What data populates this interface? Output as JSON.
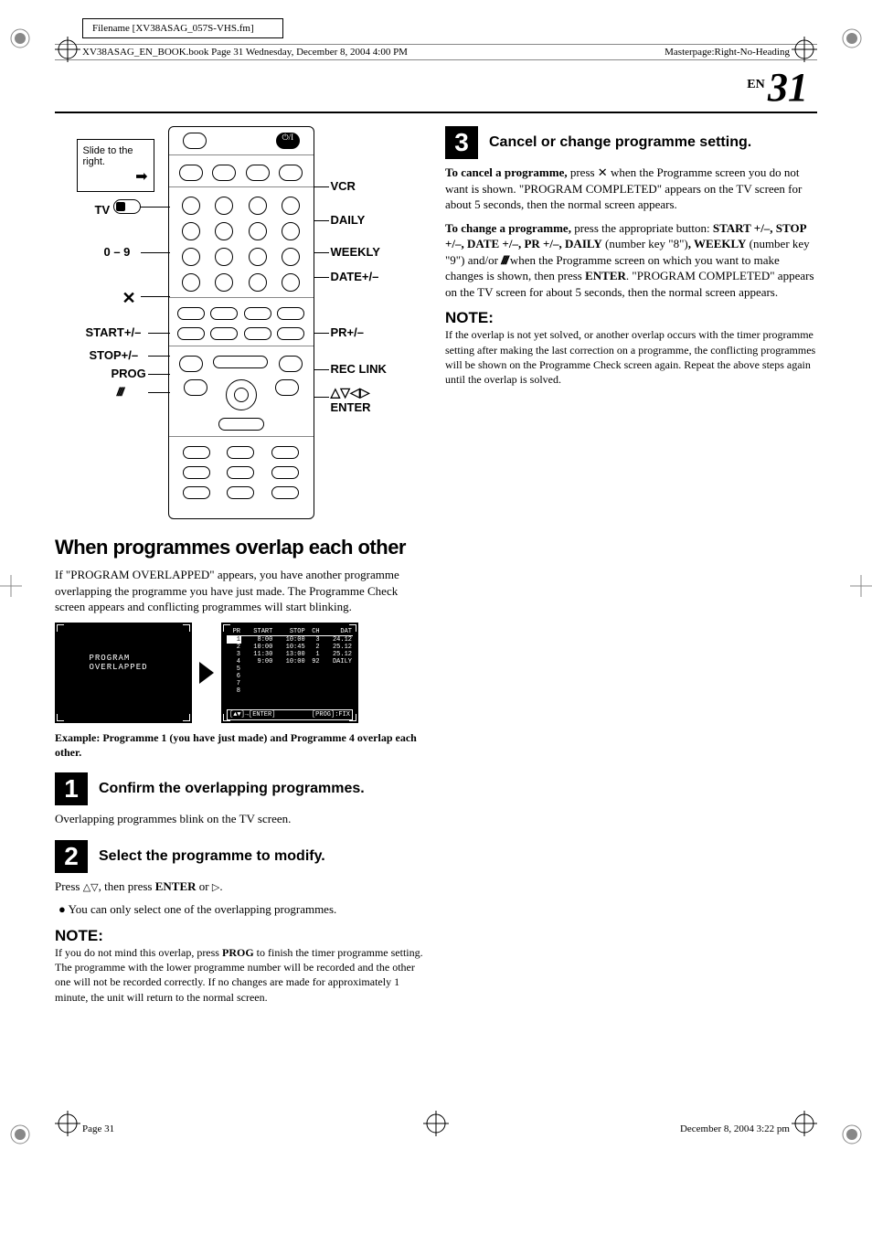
{
  "meta": {
    "filename": "Filename [XV38ASAG_057S-VHS.fm]",
    "bookline_left": "XV38ASAG_EN_BOOK.book  Page 31  Wednesday, December 8, 2004  4:00 PM",
    "bookline_right": "Masterpage:Right-No-Heading",
    "page_lang": "EN",
    "page_num": "31",
    "footer_left": "Page 31",
    "footer_right": "December 8, 2004 3:22 pm"
  },
  "remote": {
    "slide": "Slide to the right.",
    "left_tv": "TV",
    "left_09": "0 – 9",
    "left_x": "✕",
    "left_startpm": "START+/–",
    "left_stoppm": "STOP+/–",
    "left_prog": "PROG",
    "left_slash": "////",
    "right_vcr": "VCR",
    "right_daily": "DAILY",
    "right_weekly": "WEEKLY",
    "right_datepm": "DATE+/–",
    "right_prpm": "PR+/–",
    "right_reclink": "REC LINK",
    "right_arrows": "△▽◁▷",
    "right_enter": "ENTER"
  },
  "left_col": {
    "heading": "When programmes overlap each other",
    "intro": "If \"PROGRAM OVERLAPPED\" appears, you have another programme overlapping the programme you have just made. The Programme Check screen appears and conflicting programmes will start blinking.",
    "screen1_label": "PROGRAM OVERLAPPED",
    "table": {
      "columns": [
        "PR",
        "START",
        "STOP",
        "CH",
        "DAT"
      ],
      "rows": [
        [
          "1",
          "8:00",
          "10:00",
          "3",
          "24.12"
        ],
        [
          "2",
          "10:00",
          "10:45",
          "2",
          "25.12"
        ],
        [
          "3",
          "11:30",
          "13:00",
          "1",
          "25.12"
        ],
        [
          "4",
          "9:00",
          "10:00",
          "92",
          "DAILY"
        ],
        [
          "5",
          "",
          "",
          "",
          ""
        ],
        [
          "6",
          "",
          "",
          "",
          ""
        ],
        [
          "7",
          "",
          "",
          "",
          ""
        ],
        [
          "8",
          "",
          "",
          "",
          ""
        ]
      ],
      "bottom_left": "[▲▼]→[ENTER]",
      "bottom_right": "[PROG]:FIX"
    },
    "example": "Example: Programme 1 (you have just made) and Programme 4 overlap each other.",
    "step1_title": "Confirm the overlapping programmes.",
    "step1_body": "Overlapping programmes blink on the TV screen.",
    "step2_title": "Select the programme to modify.",
    "step2_body_1": "Press ",
    "step2_body_2": ", then press ",
    "step2_enter": "ENTER",
    "step2_or": " or ",
    "step2_dot": ".",
    "step2_bullet": "You can only select one of the overlapping programmes.",
    "note_head": "NOTE:",
    "note_body_1": "If you do not mind this overlap, press ",
    "note_prog": "PROG",
    "note_body_2": " to finish the timer programme setting. The programme with the lower programme number will be recorded and the other one will not be recorded correctly. If no changes are made for approximately 1 minute, the unit will return to the normal screen."
  },
  "right_col": {
    "step3_title": "Cancel or change programme setting.",
    "cancel_lead": "To cancel a programme,",
    "cancel_body": " press ✕ when the Programme screen you do not want is shown. \"PROGRAM COMPLETED\" appears on the TV screen for about 5 seconds, then the normal screen appears.",
    "change_lead": "To change a programme,",
    "change_body_1": " press the appropriate button: ",
    "btns": "START +/–, STOP +/–, DATE +/–, PR +/–, DAILY",
    "num8": " (number key \"8\")",
    "weekly": ", WEEKLY",
    "num9": " (number key \"9\")",
    "andor": " and/or ",
    "slash": "////",
    "change_body_2": " when the Programme screen on which you want to make changes is shown, then press ",
    "enter": "ENTER",
    "change_body_3": ". \"PROGRAM COMPLETED\" appears on the TV screen for about 5 seconds, then the normal screen appears.",
    "note_head": "NOTE:",
    "note_body": "If the overlap is not yet solved, or another overlap occurs with the timer programme setting after making the last correction on a programme, the conflicting programmes will be shown on the Programme Check screen again. Repeat the above steps again until the overlap is solved."
  },
  "colors": {
    "bg": "#ffffff",
    "text": "#000000",
    "gray_line": "#888888"
  }
}
